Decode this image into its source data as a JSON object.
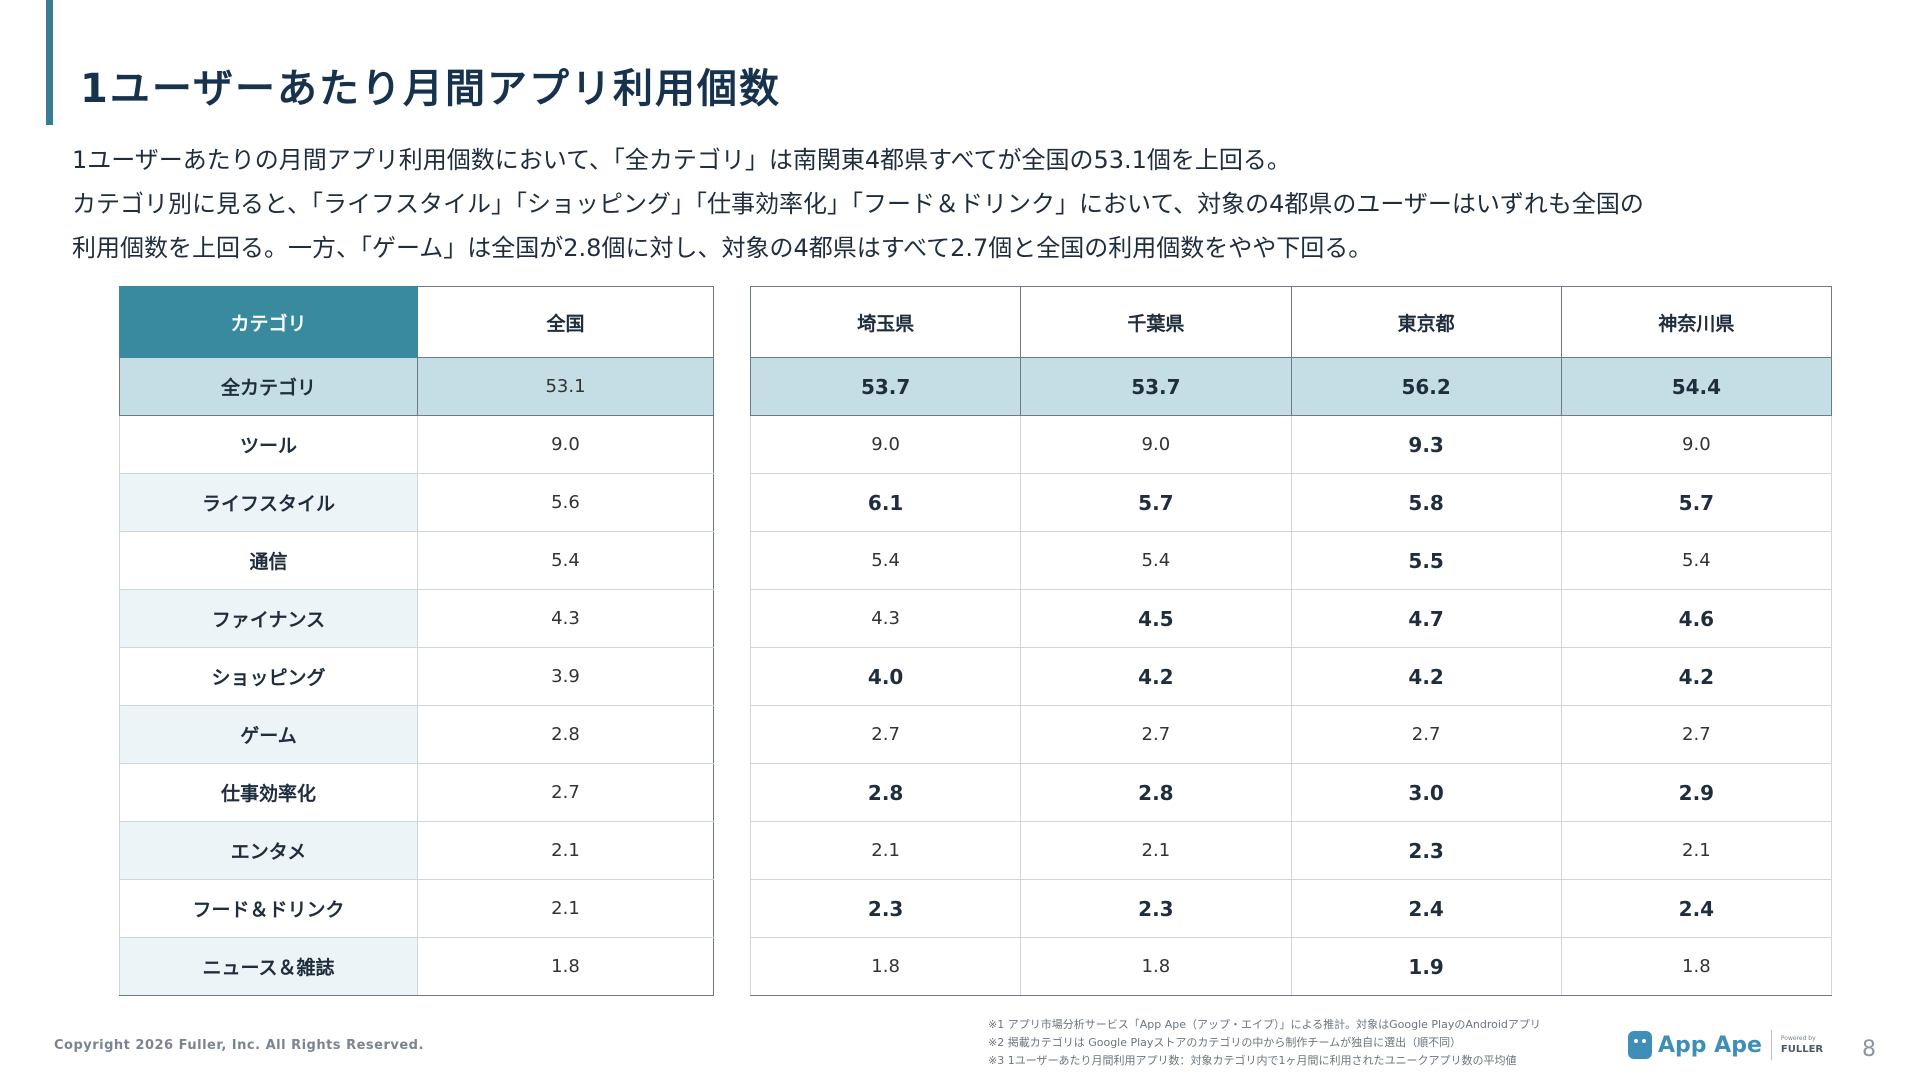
{
  "title": "1ユーザーあたり月間アプリ利用個数",
  "description": [
    "1ユーザーあたりの月間アプリ利用個数において、「全カテゴリ」は南関東4都県すべてが全国の53.1個を上回る。",
    "カテゴリ別に見ると、「ライフスタイル」「ショッピング」「仕事効率化」「フード＆ドリンク」において、対象の4都県のユーザーはいずれも全国の",
    "利用個数を上回る。一方、「ゲーム」は全国が2.8個に対し、対象の4都県はすべて2.7個と全国の利用個数をやや下回る。"
  ],
  "table": {
    "headers": [
      "カテゴリ",
      "全国",
      "埼玉県",
      "千葉県",
      "東京都",
      "神奈川県"
    ],
    "rows": [
      {
        "category": "全カテゴリ",
        "values": [
          "53.1",
          "53.7",
          "53.7",
          "56.2",
          "54.4"
        ]
      },
      {
        "category": "ツール",
        "values": [
          "9.0",
          "9.0",
          "9.0",
          "9.3",
          "9.0"
        ]
      },
      {
        "category": "ライフスタイル",
        "values": [
          "5.6",
          "6.1",
          "5.7",
          "5.8",
          "5.7"
        ]
      },
      {
        "category": "通信",
        "values": [
          "5.4",
          "5.4",
          "5.4",
          "5.5",
          "5.4"
        ]
      },
      {
        "category": "ファイナンス",
        "values": [
          "4.3",
          "4.3",
          "4.5",
          "4.7",
          "4.6"
        ]
      },
      {
        "category": "ショッピング",
        "values": [
          "3.9",
          "4.0",
          "4.2",
          "4.2",
          "4.2"
        ]
      },
      {
        "category": "ゲーム",
        "values": [
          "2.8",
          "2.7",
          "2.7",
          "2.7",
          "2.7"
        ]
      },
      {
        "category": "仕事効率化",
        "values": [
          "2.7",
          "2.8",
          "2.8",
          "3.0",
          "2.9"
        ]
      },
      {
        "category": "エンタメ",
        "values": [
          "2.1",
          "2.1",
          "2.1",
          "2.3",
          "2.1"
        ]
      },
      {
        "category": "フード＆ドリンク",
        "values": [
          "2.1",
          "2.3",
          "2.3",
          "2.4",
          "2.4"
        ]
      },
      {
        "category": "ニュース＆雑誌",
        "values": [
          "1.8",
          "1.8",
          "1.8",
          "1.9",
          "1.8"
        ]
      }
    ]
  },
  "footer": {
    "copyright": "Copyright 2026 Fuller, Inc. All Rights Reserved.",
    "notes": [
      "※1 アプリ市場分析サービス「App Ape（アップ・エイプ）」による推計。対象はGoogle PlayのAndroidアプリ",
      "※2 掲載カテゴリは Google Playストアのカテゴリの中から制作チームが独自に選出（順不同）",
      "※3 1ユーザーあたり月間利用アプリ数：対象カテゴリ内で1ヶ月間に利用されたユニークアプリ数の平均値"
    ],
    "brand": "App Ape",
    "powered_by": "Powered by",
    "partner": "FULLER",
    "page_number": "8"
  },
  "colors": {
    "accent": "#398a9e",
    "total_row": "#c5dde4",
    "stripe": "#edf4f7",
    "title": "#17324d"
  }
}
